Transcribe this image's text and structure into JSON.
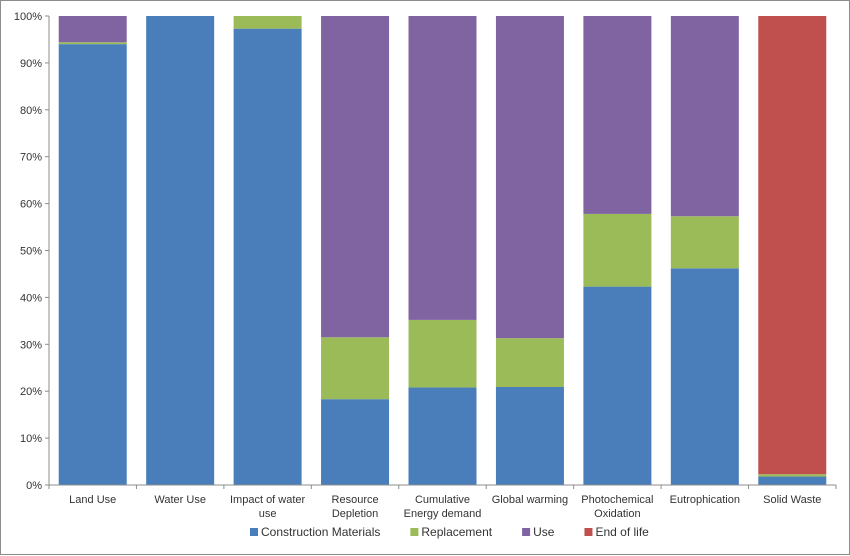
{
  "chart_data": {
    "type": "bar",
    "stacked": true,
    "categories": [
      [
        "Land Use"
      ],
      [
        "Water Use"
      ],
      [
        "Impact of water",
        "use"
      ],
      [
        "Resource",
        "Depletion"
      ],
      [
        "Cumulative",
        "Energy demand"
      ],
      [
        "Global warming"
      ],
      [
        "Photochemical",
        "Oxidation"
      ],
      [
        "Eutrophication"
      ],
      [
        "Solid Waste"
      ]
    ],
    "series": [
      {
        "name": "Construction Materials",
        "color": "#4a7ebb",
        "values": [
          94,
          100,
          97.3,
          18.3,
          20.8,
          20.9,
          42.3,
          46.2,
          1.8
        ]
      },
      {
        "name": "Replacement",
        "color": "#9bbb59",
        "values": [
          0.4,
          0,
          2.7,
          13.2,
          14.4,
          10.4,
          15.5,
          11.1,
          0.5
        ]
      },
      {
        "name": "Use",
        "color": "#8064a2",
        "values": [
          5.6,
          0,
          0,
          68.5,
          64.8,
          68.7,
          42.2,
          42.7,
          0
        ]
      },
      {
        "name": "End of life",
        "color": "#c0504d",
        "values": [
          0,
          0,
          0,
          0,
          0,
          0,
          0,
          0,
          97.7
        ]
      }
    ],
    "ylim": [
      0,
      100
    ],
    "yticks": [
      "0%",
      "10%",
      "20%",
      "30%",
      "40%",
      "50%",
      "60%",
      "70%",
      "80%",
      "90%",
      "100%"
    ],
    "legend_position": "bottom",
    "grid": false
  }
}
